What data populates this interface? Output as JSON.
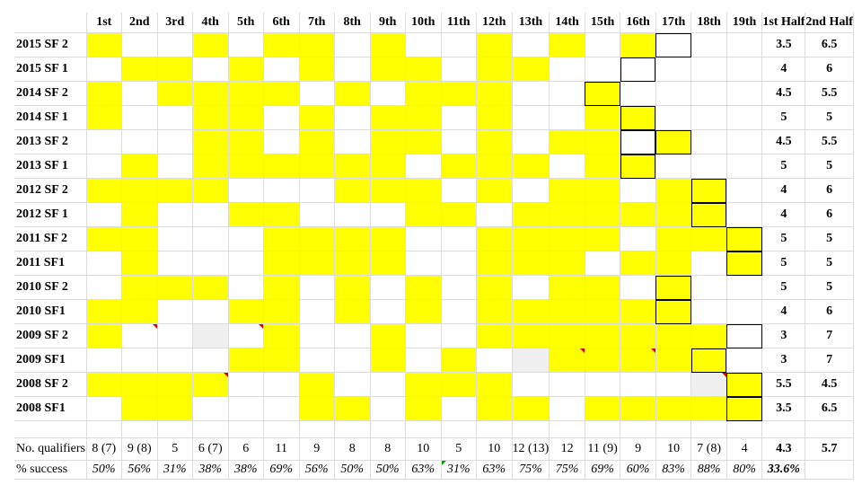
{
  "columns": [
    "1st",
    "2nd",
    "3rd",
    "4th",
    "5th",
    "6th",
    "7th",
    "8th",
    "9th",
    "10th",
    "11th",
    "12th",
    "13th",
    "14th",
    "15th",
    "16th",
    "17th",
    "18th",
    "19th",
    "1st Half",
    "2nd Half"
  ],
  "rows": [
    {
      "label": "2015 SF 2",
      "cells": "1001011010010101",
      "first": "3.5",
      "second": "6.5"
    },
    {
      "label": "2015 SF 1",
      "cells": "0110101011011000",
      "first": "4",
      "second": "6"
    },
    {
      "label": "2014 SF 2",
      "cells": "1011110101110010",
      "first": "4.5",
      "second": "5.5"
    },
    {
      "label": "2014 SF 1",
      "cells": "1001101011010011",
      "first": "5",
      "second": "5"
    },
    {
      "label": "2013 SF 2",
      "cells": "0001101011010110",
      "first": "4.5",
      "second": "5.5"
    },
    {
      "label": "2013 SF 1",
      "cells": "0101111110111011",
      "first": "5",
      "second": "5"
    },
    {
      "label": "2012 SF 2",
      "cells": "1111000111010110",
      "first": "4",
      "second": "6"
    },
    {
      "label": "2012 SF 1",
      "cells": "0100110001101111",
      "first": "4",
      "second": "6"
    },
    {
      "label": "2011 SF 2",
      "cells": "1100011110011110",
      "first": "5",
      "second": "5"
    },
    {
      "label": "2011 SF1",
      "cells": "0100011110011101",
      "first": "5",
      "second": "5"
    },
    {
      "label": "2010 SF 2",
      "cells": "0111010101010110",
      "first": "5",
      "second": "5"
    },
    {
      "label": "2010 SF1",
      "cells": "1100110101011111",
      "first": "4",
      "second": "6"
    },
    {
      "label": "2009 SF 2",
      "cells": "1000010010011111",
      "first": "3",
      "second": "7"
    },
    {
      "label": "2009 SF1",
      "cells": "0000110010100111",
      "first": "3",
      "second": "7"
    },
    {
      "label": "2008 SF 2",
      "cells": "1111001001110000",
      "first": "5.5",
      "second": "4.5"
    },
    {
      "label": "2008 SF1",
      "cells": "0110001101011011",
      "first": "3.5",
      "second": "6.5"
    }
  ],
  "extra_cols": [
    [
      "0",
      "0",
      "0",
      "0",
      "1",
      "0",
      "1",
      "1",
      "1",
      "1",
      "1",
      "1",
      "1",
      "1",
      "0",
      "1"
    ],
    [
      "0",
      "0",
      "0",
      "0",
      "0",
      "0",
      "1",
      "1",
      "1",
      "0",
      "0",
      "0",
      "1",
      "1",
      "0",
      "1"
    ],
    [
      "0",
      "0",
      "0",
      "0",
      "0",
      "0",
      "0",
      "0",
      "1",
      "1",
      "0",
      "0",
      "0",
      "0",
      "1",
      "1"
    ]
  ],
  "qualifiers": {
    "label": "No. qualifiers",
    "values": [
      "8 (7)",
      "9 (8)",
      "5",
      "6 (7)",
      "6",
      "11",
      "9",
      "8",
      "8",
      "10",
      "5",
      "10",
      "12 (13)",
      "12",
      "11 (9)",
      "9",
      "10",
      "7 (8)",
      "4"
    ],
    "first": "4.3",
    "second": "5.7"
  },
  "success": {
    "label": "% success",
    "values": [
      "50%",
      "56%",
      "31%",
      "38%",
      "38%",
      "69%",
      "56%",
      "50%",
      "50%",
      "63%",
      "31%",
      "63%",
      "75%",
      "75%",
      "69%",
      "60%",
      "83%",
      "88%",
      "80%"
    ],
    "first": "33.6%"
  },
  "colors": {
    "highlight": "#ffff00",
    "comment_marker": "#e00000"
  }
}
